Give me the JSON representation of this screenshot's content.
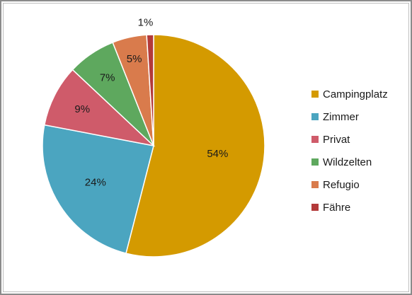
{
  "chart_data": {
    "type": "pie",
    "categories": [
      "Campingplatz",
      "Zimmer",
      "Privat",
      "Wildzelten",
      "Refugio",
      "Fähre"
    ],
    "values": [
      54,
      24,
      9,
      7,
      5,
      1
    ],
    "data_labels": [
      "54%",
      "24%",
      "9%",
      "7%",
      "5%",
      "1%"
    ],
    "colors": [
      "#D49A00",
      "#4BA5C0",
      "#CF5B6A",
      "#5EA85E",
      "#D97B4C",
      "#B33A3A"
    ],
    "legend_position": "right",
    "start_angle": "12 o'clock, clockwise"
  }
}
